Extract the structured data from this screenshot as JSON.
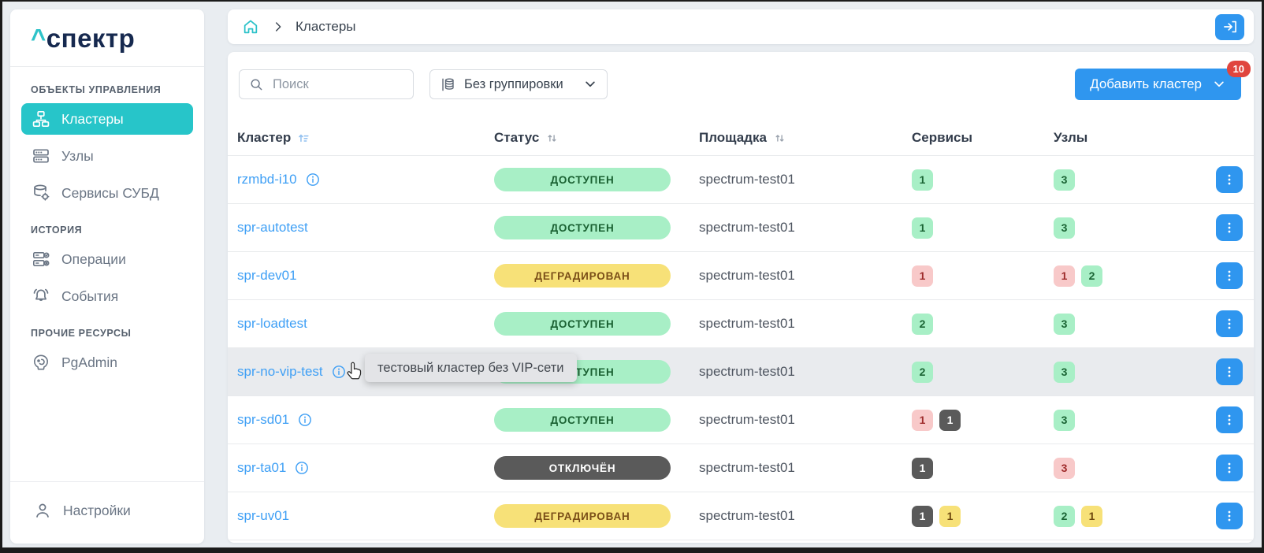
{
  "sidebar": {
    "logo": {
      "caret": "^",
      "text": "спектр"
    },
    "sections": [
      {
        "label": "ОБЪЕКТЫ УПРАВЛЕНИЯ",
        "items": [
          {
            "id": "clusters",
            "label": "Кластеры",
            "icon": "cluster-icon",
            "active": true
          },
          {
            "id": "nodes",
            "label": "Узлы",
            "icon": "nodes-icon",
            "active": false
          },
          {
            "id": "db-services",
            "label": "Сервисы СУБД",
            "icon": "db-services-icon",
            "active": false
          }
        ]
      },
      {
        "label": "ИСТОРИЯ",
        "items": [
          {
            "id": "operations",
            "label": "Операции",
            "icon": "operations-icon",
            "active": false
          },
          {
            "id": "events",
            "label": "События",
            "icon": "events-bell-icon",
            "active": false
          }
        ]
      },
      {
        "label": "ПРОЧИЕ РЕСУРСЫ",
        "items": [
          {
            "id": "pgadmin",
            "label": "PgAdmin",
            "icon": "pgadmin-icon",
            "active": false
          }
        ]
      }
    ],
    "footer_item": {
      "id": "settings",
      "label": "Настройки",
      "icon": "user-icon"
    }
  },
  "breadcrumb": {
    "home_icon": "home-icon",
    "current": "Кластеры"
  },
  "topbar": {
    "login_icon": "login-icon"
  },
  "toolbar": {
    "search_placeholder": "Поиск",
    "grouping_label": "Без группировки",
    "add_button_label": "Добавить кластер",
    "add_button_badge": "10"
  },
  "table": {
    "columns": [
      {
        "key": "cluster",
        "label": "Кластер",
        "sort": "asc-active"
      },
      {
        "key": "status",
        "label": "Статус",
        "sort": "both"
      },
      {
        "key": "site",
        "label": "Площадка",
        "sort": "both"
      },
      {
        "key": "services",
        "label": "Сервисы",
        "sort": null
      },
      {
        "key": "nodes",
        "label": "Узлы",
        "sort": null
      }
    ],
    "rows": [
      {
        "name": "rzmbd-i10",
        "info": true,
        "status": {
          "label": "ДОСТУПЕН",
          "type": "available"
        },
        "site": "spectrum-test01",
        "services": [
          {
            "value": "1",
            "type": "green"
          }
        ],
        "nodes": [
          {
            "value": "3",
            "type": "green"
          }
        ],
        "highlighted": false
      },
      {
        "name": "spr-autotest",
        "info": false,
        "status": {
          "label": "ДОСТУПЕН",
          "type": "available"
        },
        "site": "spectrum-test01",
        "services": [
          {
            "value": "1",
            "type": "green"
          }
        ],
        "nodes": [
          {
            "value": "3",
            "type": "green"
          }
        ],
        "highlighted": false
      },
      {
        "name": "spr-dev01",
        "info": false,
        "status": {
          "label": "ДЕГРАДИРОВАН",
          "type": "degraded"
        },
        "site": "spectrum-test01",
        "services": [
          {
            "value": "1",
            "type": "red"
          }
        ],
        "nodes": [
          {
            "value": "1",
            "type": "red"
          },
          {
            "value": "2",
            "type": "green"
          }
        ],
        "highlighted": false
      },
      {
        "name": "spr-loadtest",
        "info": false,
        "status": {
          "label": "ДОСТУПЕН",
          "type": "available"
        },
        "site": "spectrum-test01",
        "services": [
          {
            "value": "2",
            "type": "green"
          }
        ],
        "nodes": [
          {
            "value": "3",
            "type": "green"
          }
        ],
        "highlighted": false
      },
      {
        "name": "spr-no-vip-test",
        "info": true,
        "status": {
          "label": "ДОСТУПЕН",
          "type": "available"
        },
        "site": "spectrum-test01",
        "services": [
          {
            "value": "2",
            "type": "green"
          }
        ],
        "nodes": [
          {
            "value": "3",
            "type": "green"
          }
        ],
        "highlighted": true
      },
      {
        "name": "spr-sd01",
        "info": true,
        "status": {
          "label": "ДОСТУПЕН",
          "type": "available"
        },
        "site": "spectrum-test01",
        "services": [
          {
            "value": "1",
            "type": "red"
          },
          {
            "value": "1",
            "type": "dark"
          }
        ],
        "nodes": [
          {
            "value": "3",
            "type": "green"
          }
        ],
        "highlighted": false
      },
      {
        "name": "spr-ta01",
        "info": true,
        "status": {
          "label": "ОТКЛЮЧЁН",
          "type": "disabled"
        },
        "site": "spectrum-test01",
        "services": [
          {
            "value": "1",
            "type": "dark"
          }
        ],
        "nodes": [
          {
            "value": "3",
            "type": "red"
          }
        ],
        "highlighted": false
      },
      {
        "name": "spr-uv01",
        "info": false,
        "status": {
          "label": "ДЕГРАДИРОВАН",
          "type": "degraded"
        },
        "site": "spectrum-test01",
        "services": [
          {
            "value": "1",
            "type": "dark"
          },
          {
            "value": "1",
            "type": "yellow"
          }
        ],
        "nodes": [
          {
            "value": "2",
            "type": "green"
          },
          {
            "value": "1",
            "type": "yellow"
          }
        ],
        "highlighted": false
      }
    ]
  },
  "tooltip": {
    "text": "тестовый кластер без VIP-сети"
  },
  "colors": {
    "accent_teal": "#27C5C9",
    "accent_blue": "#2F96EF",
    "link_blue": "#3E9FF5",
    "logo_navy": "#16294F",
    "badge_counter_red": "#E0453E",
    "status_available_bg": "#A8EFC6",
    "status_available_text": "#1A6132",
    "status_degraded_bg": "#F7E178",
    "status_degraded_text": "#7A4E18",
    "status_disabled_bg": "#5A5A5A",
    "mini_red_bg": "#F8C9C9",
    "mini_red_text": "#9E2B2B",
    "page_bg": "#E9EDF1",
    "row_hover_bg": "#E9EBEE"
  }
}
